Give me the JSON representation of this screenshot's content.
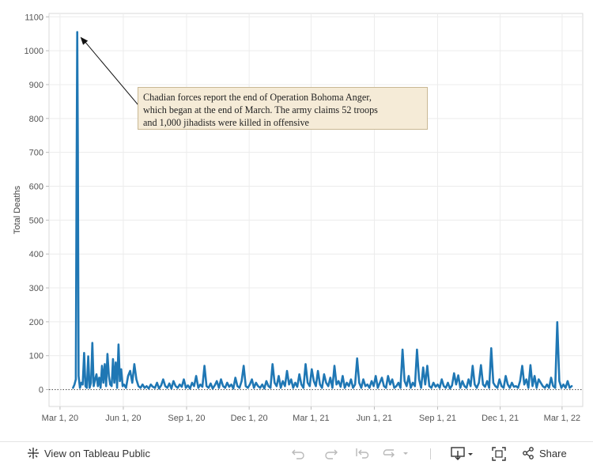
{
  "chart_data": {
    "type": "line",
    "ylabel": "Total Deaths",
    "xlabel": "",
    "title": "",
    "y_ticks": [
      0,
      100,
      200,
      300,
      400,
      500,
      600,
      700,
      800,
      900,
      1000,
      1100
    ],
    "ylim": [
      -50,
      1110
    ],
    "xlim": [
      "2020-02-14",
      "2022-03-31"
    ],
    "x_ticks": [
      {
        "date": "2020-03-01",
        "label": "Mar 1, 20"
      },
      {
        "date": "2020-06-01",
        "label": "Jun 1, 20"
      },
      {
        "date": "2020-09-01",
        "label": "Sep 1, 20"
      },
      {
        "date": "2020-12-01",
        "label": "Dec 1, 20"
      },
      {
        "date": "2021-03-01",
        "label": "Mar 1, 21"
      },
      {
        "date": "2021-06-01",
        "label": "Jun 1, 21"
      },
      {
        "date": "2021-09-01",
        "label": "Sep 1, 21"
      },
      {
        "date": "2021-12-01",
        "label": "Dec 1, 21"
      },
      {
        "date": "2022-03-01",
        "label": "Mar 1, 22"
      }
    ],
    "grid": true,
    "series": [
      {
        "name": "",
        "color": "#1f77b4",
        "points": [
          [
            "2020-03-20",
            5
          ],
          [
            "2020-03-22",
            15
          ],
          [
            "2020-03-24",
            30
          ],
          [
            "2020-03-25",
            600
          ],
          [
            "2020-03-26",
            1055
          ],
          [
            "2020-03-27",
            700
          ],
          [
            "2020-03-28",
            40
          ],
          [
            "2020-03-30",
            5
          ],
          [
            "2020-04-01",
            20
          ],
          [
            "2020-04-03",
            15
          ],
          [
            "2020-04-05",
            108
          ],
          [
            "2020-04-07",
            10
          ],
          [
            "2020-04-09",
            5
          ],
          [
            "2020-04-11",
            98
          ],
          [
            "2020-04-13",
            5
          ],
          [
            "2020-04-15",
            20
          ],
          [
            "2020-04-17",
            138
          ],
          [
            "2020-04-19",
            10
          ],
          [
            "2020-04-21",
            30
          ],
          [
            "2020-04-23",
            45
          ],
          [
            "2020-04-25",
            10
          ],
          [
            "2020-04-27",
            35
          ],
          [
            "2020-04-29",
            5
          ],
          [
            "2020-05-01",
            70
          ],
          [
            "2020-05-03",
            20
          ],
          [
            "2020-05-05",
            75
          ],
          [
            "2020-05-07",
            10
          ],
          [
            "2020-05-09",
            105
          ],
          [
            "2020-05-11",
            40
          ],
          [
            "2020-05-13",
            15
          ],
          [
            "2020-05-15",
            10
          ],
          [
            "2020-05-17",
            90
          ],
          [
            "2020-05-19",
            20
          ],
          [
            "2020-05-21",
            80
          ],
          [
            "2020-05-23",
            5
          ],
          [
            "2020-05-25",
            133
          ],
          [
            "2020-05-27",
            25
          ],
          [
            "2020-05-29",
            60
          ],
          [
            "2020-05-31",
            10
          ],
          [
            "2020-06-02",
            15
          ],
          [
            "2020-06-05",
            5
          ],
          [
            "2020-06-08",
            40
          ],
          [
            "2020-06-11",
            55
          ],
          [
            "2020-06-14",
            20
          ],
          [
            "2020-06-17",
            75
          ],
          [
            "2020-06-20",
            30
          ],
          [
            "2020-06-23",
            10
          ],
          [
            "2020-06-26",
            5
          ],
          [
            "2020-06-29",
            15
          ],
          [
            "2020-07-02",
            5
          ],
          [
            "2020-07-05",
            10
          ],
          [
            "2020-07-08",
            3
          ],
          [
            "2020-07-11",
            15
          ],
          [
            "2020-07-14",
            8
          ],
          [
            "2020-07-17",
            5
          ],
          [
            "2020-07-20",
            20
          ],
          [
            "2020-07-23",
            3
          ],
          [
            "2020-07-26",
            12
          ],
          [
            "2020-07-29",
            30
          ],
          [
            "2020-08-01",
            10
          ],
          [
            "2020-08-04",
            5
          ],
          [
            "2020-08-07",
            18
          ],
          [
            "2020-08-10",
            3
          ],
          [
            "2020-08-13",
            25
          ],
          [
            "2020-08-16",
            10
          ],
          [
            "2020-08-19",
            5
          ],
          [
            "2020-08-22",
            15
          ],
          [
            "2020-08-25",
            8
          ],
          [
            "2020-08-28",
            30
          ],
          [
            "2020-08-31",
            5
          ],
          [
            "2020-09-03",
            12
          ],
          [
            "2020-09-06",
            3
          ],
          [
            "2020-09-09",
            20
          ],
          [
            "2020-09-12",
            10
          ],
          [
            "2020-09-15",
            40
          ],
          [
            "2020-09-18",
            5
          ],
          [
            "2020-09-21",
            15
          ],
          [
            "2020-09-24",
            8
          ],
          [
            "2020-09-27",
            70
          ],
          [
            "2020-09-30",
            10
          ],
          [
            "2020-10-03",
            5
          ],
          [
            "2020-10-06",
            18
          ],
          [
            "2020-10-09",
            3
          ],
          [
            "2020-10-12",
            12
          ],
          [
            "2020-10-15",
            25
          ],
          [
            "2020-10-18",
            5
          ],
          [
            "2020-10-21",
            30
          ],
          [
            "2020-10-24",
            10
          ],
          [
            "2020-10-27",
            5
          ],
          [
            "2020-10-30",
            20
          ],
          [
            "2020-11-02",
            8
          ],
          [
            "2020-11-05",
            15
          ],
          [
            "2020-11-08",
            3
          ],
          [
            "2020-11-11",
            35
          ],
          [
            "2020-11-14",
            10
          ],
          [
            "2020-11-17",
            5
          ],
          [
            "2020-11-20",
            25
          ],
          [
            "2020-11-23",
            70
          ],
          [
            "2020-11-26",
            10
          ],
          [
            "2020-11-29",
            5
          ],
          [
            "2020-12-02",
            15
          ],
          [
            "2020-12-05",
            30
          ],
          [
            "2020-12-08",
            5
          ],
          [
            "2020-12-11",
            20
          ],
          [
            "2020-12-14",
            10
          ],
          [
            "2020-12-17",
            5
          ],
          [
            "2020-12-20",
            15
          ],
          [
            "2020-12-23",
            3
          ],
          [
            "2020-12-26",
            25
          ],
          [
            "2020-12-29",
            10
          ],
          [
            "2021-01-01",
            5
          ],
          [
            "2021-01-04",
            75
          ],
          [
            "2021-01-07",
            20
          ],
          [
            "2021-01-10",
            10
          ],
          [
            "2021-01-13",
            40
          ],
          [
            "2021-01-16",
            5
          ],
          [
            "2021-01-19",
            25
          ],
          [
            "2021-01-22",
            10
          ],
          [
            "2021-01-25",
            55
          ],
          [
            "2021-01-28",
            15
          ],
          [
            "2021-01-31",
            30
          ],
          [
            "2021-02-03",
            5
          ],
          [
            "2021-02-06",
            20
          ],
          [
            "2021-02-09",
            8
          ],
          [
            "2021-02-12",
            45
          ],
          [
            "2021-02-15",
            15
          ],
          [
            "2021-02-18",
            5
          ],
          [
            "2021-02-21",
            75
          ],
          [
            "2021-02-24",
            20
          ],
          [
            "2021-02-27",
            10
          ],
          [
            "2021-03-02",
            60
          ],
          [
            "2021-03-05",
            25
          ],
          [
            "2021-03-08",
            10
          ],
          [
            "2021-03-11",
            55
          ],
          [
            "2021-03-14",
            15
          ],
          [
            "2021-03-17",
            5
          ],
          [
            "2021-03-20",
            45
          ],
          [
            "2021-03-23",
            20
          ],
          [
            "2021-03-26",
            10
          ],
          [
            "2021-03-29",
            35
          ],
          [
            "2021-04-01",
            5
          ],
          [
            "2021-04-04",
            70
          ],
          [
            "2021-04-07",
            15
          ],
          [
            "2021-04-10",
            25
          ],
          [
            "2021-04-13",
            8
          ],
          [
            "2021-04-16",
            40
          ],
          [
            "2021-04-19",
            5
          ],
          [
            "2021-04-22",
            20
          ],
          [
            "2021-04-25",
            10
          ],
          [
            "2021-04-28",
            30
          ],
          [
            "2021-05-01",
            5
          ],
          [
            "2021-05-04",
            15
          ],
          [
            "2021-05-07",
            92
          ],
          [
            "2021-05-10",
            20
          ],
          [
            "2021-05-13",
            5
          ],
          [
            "2021-05-16",
            30
          ],
          [
            "2021-05-19",
            10
          ],
          [
            "2021-05-22",
            15
          ],
          [
            "2021-05-25",
            5
          ],
          [
            "2021-05-28",
            25
          ],
          [
            "2021-05-31",
            10
          ],
          [
            "2021-06-03",
            40
          ],
          [
            "2021-06-06",
            5
          ],
          [
            "2021-06-09",
            20
          ],
          [
            "2021-06-12",
            35
          ],
          [
            "2021-06-15",
            10
          ],
          [
            "2021-06-18",
            5
          ],
          [
            "2021-06-21",
            40
          ],
          [
            "2021-06-24",
            15
          ],
          [
            "2021-06-27",
            30
          ],
          [
            "2021-06-30",
            5
          ],
          [
            "2021-07-03",
            10
          ],
          [
            "2021-07-06",
            20
          ],
          [
            "2021-07-09",
            5
          ],
          [
            "2021-07-12",
            118
          ],
          [
            "2021-07-15",
            25
          ],
          [
            "2021-07-18",
            10
          ],
          [
            "2021-07-21",
            40
          ],
          [
            "2021-07-24",
            5
          ],
          [
            "2021-07-27",
            20
          ],
          [
            "2021-07-30",
            10
          ],
          [
            "2021-08-02",
            118
          ],
          [
            "2021-08-05",
            30
          ],
          [
            "2021-08-08",
            5
          ],
          [
            "2021-08-11",
            65
          ],
          [
            "2021-08-14",
            15
          ],
          [
            "2021-08-17",
            70
          ],
          [
            "2021-08-20",
            10
          ],
          [
            "2021-08-23",
            5
          ],
          [
            "2021-08-26",
            20
          ],
          [
            "2021-08-29",
            8
          ],
          [
            "2021-09-01",
            15
          ],
          [
            "2021-09-04",
            5
          ],
          [
            "2021-09-07",
            30
          ],
          [
            "2021-09-10",
            10
          ],
          [
            "2021-09-13",
            5
          ],
          [
            "2021-09-16",
            20
          ],
          [
            "2021-09-19",
            3
          ],
          [
            "2021-09-22",
            12
          ],
          [
            "2021-09-25",
            48
          ],
          [
            "2021-09-28",
            15
          ],
          [
            "2021-10-01",
            42
          ],
          [
            "2021-10-04",
            5
          ],
          [
            "2021-10-07",
            25
          ],
          [
            "2021-10-10",
            10
          ],
          [
            "2021-10-13",
            5
          ],
          [
            "2021-10-16",
            30
          ],
          [
            "2021-10-19",
            10
          ],
          [
            "2021-10-22",
            70
          ],
          [
            "2021-10-25",
            15
          ],
          [
            "2021-10-28",
            5
          ],
          [
            "2021-10-31",
            20
          ],
          [
            "2021-11-03",
            72
          ],
          [
            "2021-11-06",
            15
          ],
          [
            "2021-11-09",
            8
          ],
          [
            "2021-11-12",
            25
          ],
          [
            "2021-11-15",
            5
          ],
          [
            "2021-11-18",
            122
          ],
          [
            "2021-11-21",
            20
          ],
          [
            "2021-11-24",
            10
          ],
          [
            "2021-11-27",
            5
          ],
          [
            "2021-11-30",
            30
          ],
          [
            "2021-12-03",
            10
          ],
          [
            "2021-12-06",
            5
          ],
          [
            "2021-12-09",
            40
          ],
          [
            "2021-12-12",
            15
          ],
          [
            "2021-12-15",
            5
          ],
          [
            "2021-12-18",
            20
          ],
          [
            "2021-12-21",
            8
          ],
          [
            "2021-12-24",
            10
          ],
          [
            "2021-12-27",
            5
          ],
          [
            "2021-12-30",
            25
          ],
          [
            "2022-01-02",
            70
          ],
          [
            "2022-01-05",
            15
          ],
          [
            "2022-01-08",
            30
          ],
          [
            "2022-01-11",
            5
          ],
          [
            "2022-01-14",
            72
          ],
          [
            "2022-01-17",
            10
          ],
          [
            "2022-01-20",
            40
          ],
          [
            "2022-01-23",
            5
          ],
          [
            "2022-01-26",
            30
          ],
          [
            "2022-01-29",
            20
          ],
          [
            "2022-02-01",
            10
          ],
          [
            "2022-02-04",
            5
          ],
          [
            "2022-02-07",
            15
          ],
          [
            "2022-02-10",
            5
          ],
          [
            "2022-02-13",
            35
          ],
          [
            "2022-02-16",
            10
          ],
          [
            "2022-02-19",
            5
          ],
          [
            "2022-02-22",
            199
          ],
          [
            "2022-02-25",
            25
          ],
          [
            "2022-02-28",
            5
          ],
          [
            "2022-03-03",
            15
          ],
          [
            "2022-03-06",
            5
          ],
          [
            "2022-03-09",
            25
          ],
          [
            "2022-03-12",
            5
          ],
          [
            "2022-03-15",
            10
          ]
        ]
      }
    ],
    "annotation": {
      "line1": "Chadian forces report the end of Operation Bohoma Anger,",
      "line2": "which began at the end of March. The army claims 52 troops",
      "line3": "and 1,000 jihadists were killed in offensive",
      "target": {
        "date": "2020-03-26",
        "value": 1055
      }
    }
  },
  "toolbar": {
    "view_label": "View on Tableau Public",
    "share_label": "Share",
    "icons": [
      "tableau-icon",
      "undo-icon",
      "redo-icon",
      "revert-icon",
      "refresh-icon",
      "download-icon",
      "fullscreen-icon",
      "share-icon"
    ],
    "muted_color": "#b9b9b9"
  }
}
